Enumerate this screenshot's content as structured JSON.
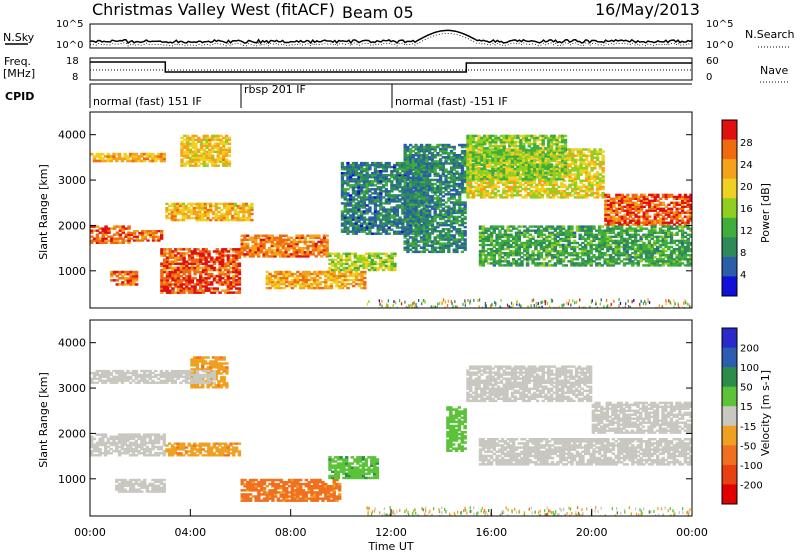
{
  "header": {
    "station": "Christmas Valley West (fitACF)",
    "beam": "Beam 05",
    "date": "16/May/2013"
  },
  "side_labels": {
    "nsky": "N.Sky",
    "freq_line1": "Freq.",
    "freq_line2": "[MHz]",
    "cpid": "CPID",
    "nsearch": "N.Search",
    "nave": "Nave"
  },
  "noise_panel": {
    "left_ticks": [
      "10^5",
      "10^0"
    ],
    "right_ticks": [
      "10^5",
      "10^0"
    ]
  },
  "freq_panel": {
    "left_ticks": [
      "18",
      "8"
    ],
    "right_ticks": [
      "60",
      "0"
    ]
  },
  "cpid_segments": [
    {
      "label": "normal (fast) 151 IF",
      "start_hr": 0.0,
      "end_hr": 6.0
    },
    {
      "label": "rbsp 201 IF",
      "start_hr": 6.0,
      "end_hr": 12.0
    },
    {
      "label": "normal (fast) -151 IF",
      "start_hr": 12.0,
      "end_hr": 24.0
    }
  ],
  "colors": {
    "power_scale": [
      "#1010d8",
      "#2a5fa8",
      "#2f8a5a",
      "#3fae3a",
      "#8fcf20",
      "#f0d020",
      "#f5a21a",
      "#f06a10",
      "#e01010"
    ],
    "velocity_scale": [
      "#2a2acc",
      "#2c5db0",
      "#2c8c4a",
      "#5cc23a",
      "#c8c8c0",
      "#f0a020",
      "#f07020",
      "#e84010",
      "#e00000"
    ]
  },
  "chart_data": [
    {
      "type": "heatmap",
      "name": "power",
      "title": "",
      "xlabel": "",
      "ylabel": "Slant Range [km]",
      "x_range_hours": [
        0,
        24
      ],
      "y_range_km": [
        180,
        4500
      ],
      "y_ticks": [
        "1000",
        "2000",
        "3000",
        "4000"
      ],
      "colorbar": {
        "label": "Power [dB]",
        "ticks": [
          "4",
          "8",
          "12",
          "16",
          "20",
          "24",
          "28"
        ],
        "range": [
          0,
          30
        ]
      },
      "bands": [
        {
          "t0": 0.0,
          "t1": 1.6,
          "r0": 1600,
          "r1": 2000,
          "level": 27
        },
        {
          "t0": 1.6,
          "t1": 2.9,
          "r0": 1650,
          "r1": 1900,
          "level": 26
        },
        {
          "t0": 0.8,
          "t1": 1.9,
          "r0": 680,
          "r1": 1000,
          "level": 26
        },
        {
          "t0": 2.8,
          "t1": 6.0,
          "r0": 500,
          "r1": 1500,
          "level": 27
        },
        {
          "t0": 6.0,
          "t1": 9.5,
          "r0": 1300,
          "r1": 1800,
          "level": 25
        },
        {
          "t0": 0.0,
          "t1": 3.0,
          "r0": 3400,
          "r1": 3600,
          "level": 22
        },
        {
          "t0": 3.0,
          "t1": 6.5,
          "r0": 2100,
          "r1": 2500,
          "level": 21
        },
        {
          "t0": 3.6,
          "t1": 5.6,
          "r0": 3300,
          "r1": 4000,
          "level": 20
        },
        {
          "t0": 7.0,
          "t1": 11.0,
          "r0": 600,
          "r1": 1000,
          "level": 22
        },
        {
          "t0": 9.5,
          "t1": 12.2,
          "r0": 1000,
          "r1": 1400,
          "level": 16
        },
        {
          "t0": 10.0,
          "t1": 13.5,
          "r0": 1800,
          "r1": 3400,
          "level": 6
        },
        {
          "t0": 12.5,
          "t1": 15.0,
          "r0": 1400,
          "r1": 3800,
          "level": 7
        },
        {
          "t0": 15.0,
          "t1": 20.5,
          "r0": 2600,
          "r1": 3700,
          "level": 18
        },
        {
          "t0": 20.5,
          "t1": 24.0,
          "r0": 2000,
          "r1": 2700,
          "level": 27
        },
        {
          "t0": 15.5,
          "t1": 24.0,
          "r0": 1100,
          "r1": 2000,
          "level": 10
        },
        {
          "t0": 15.0,
          "t1": 19.0,
          "r0": 3000,
          "r1": 4000,
          "level": 14
        }
      ]
    },
    {
      "type": "heatmap",
      "name": "velocity",
      "title": "",
      "xlabel": "Time UT",
      "ylabel": "Slant Range [km]",
      "x_range_hours": [
        0,
        24
      ],
      "x_ticks": [
        "00:00",
        "04:00",
        "08:00",
        "12:00",
        "16:00",
        "20:00",
        "00:00"
      ],
      "y_range_km": [
        180,
        4500
      ],
      "y_ticks": [
        "1000",
        "2000",
        "3000",
        "4000"
      ],
      "colorbar": {
        "label": "Velocity [m s-1]",
        "ticks": [
          "200",
          "100",
          "50",
          "15",
          "-15",
          "-50",
          "-100",
          "-200"
        ],
        "range": [
          -250,
          250
        ]
      },
      "bands": [
        {
          "t0": 0.0,
          "t1": 3.0,
          "r0": 1500,
          "r1": 2000,
          "level": 0
        },
        {
          "t0": 1.0,
          "t1": 3.0,
          "r0": 700,
          "r1": 1000,
          "level": 0
        },
        {
          "t0": 3.0,
          "t1": 6.0,
          "r0": 1500,
          "r1": 1800,
          "level": -40
        },
        {
          "t0": 4.0,
          "t1": 5.5,
          "r0": 3000,
          "r1": 3700,
          "level": -40
        },
        {
          "t0": 6.0,
          "t1": 10.0,
          "r0": 500,
          "r1": 1000,
          "level": -60
        },
        {
          "t0": 9.5,
          "t1": 11.5,
          "r0": 1000,
          "r1": 1500,
          "level": 40
        },
        {
          "t0": 14.2,
          "t1": 15.0,
          "r0": 1600,
          "r1": 2600,
          "level": 30
        },
        {
          "t0": 15.0,
          "t1": 20.0,
          "r0": 2700,
          "r1": 3500,
          "level": 0
        },
        {
          "t0": 20.0,
          "t1": 24.0,
          "r0": 2000,
          "r1": 2700,
          "level": 0
        },
        {
          "t0": 15.5,
          "t1": 24.0,
          "r0": 1300,
          "r1": 1900,
          "level": 0
        },
        {
          "t0": 0.0,
          "t1": 5.0,
          "r0": 3100,
          "r1": 3400,
          "level": 0
        }
      ]
    }
  ]
}
